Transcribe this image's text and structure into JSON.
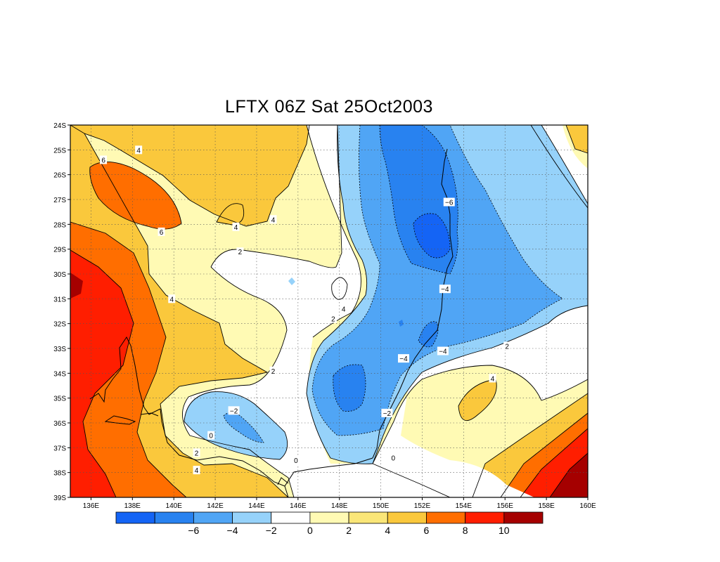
{
  "title": "LFTX 06Z Sat 25Oct2003",
  "map": {
    "lat_labels": [
      "24S",
      "25S",
      "26S",
      "27S",
      "28S",
      "29S",
      "30S",
      "31S",
      "32S",
      "33S",
      "34S",
      "35S",
      "36S",
      "37S",
      "38S",
      "39S"
    ],
    "lon_labels": [
      "136E",
      "138E",
      "140E",
      "142E",
      "144E",
      "146E",
      "148E",
      "150E",
      "152E",
      "154E",
      "156E",
      "158E",
      "160E"
    ],
    "lon_range": [
      135,
      160
    ],
    "lat_range": [
      -39,
      -24
    ],
    "grid": "dotted"
  },
  "contour_labels": [
    {
      "text": "6",
      "lon": 136.6,
      "lat": -25.4
    },
    {
      "text": "4",
      "lon": 138.3,
      "lat": -25.0
    },
    {
      "text": "6",
      "lon": 139.4,
      "lat": -28.3
    },
    {
      "text": "4",
      "lon": 139.9,
      "lat": -31.0
    },
    {
      "text": "4",
      "lon": 143.0,
      "lat": -28.1
    },
    {
      "text": "4",
      "lon": 144.8,
      "lat": -27.8
    },
    {
      "text": "2",
      "lon": 143.2,
      "lat": -29.1
    },
    {
      "text": "4",
      "lon": 148.2,
      "lat": -31.4
    },
    {
      "text": "2",
      "lon": 147.7,
      "lat": -31.8
    },
    {
      "text": "2",
      "lon": 144.8,
      "lat": -33.9
    },
    {
      "text": "-2",
      "lon": 142.9,
      "lat": -35.5
    },
    {
      "text": "0",
      "lon": 141.8,
      "lat": -36.5
    },
    {
      "text": "2",
      "lon": 141.1,
      "lat": -37.2
    },
    {
      "text": "4",
      "lon": 141.1,
      "lat": -37.9
    },
    {
      "text": "0",
      "lon": 145.9,
      "lat": -37.5
    },
    {
      "text": "-6",
      "lon": 153.3,
      "lat": -27.1
    },
    {
      "text": "-4",
      "lon": 153.1,
      "lat": -30.6
    },
    {
      "text": "-4",
      "lon": 151.1,
      "lat": -33.4
    },
    {
      "text": "-4",
      "lon": 153.0,
      "lat": -33.1
    },
    {
      "text": "-2",
      "lon": 150.3,
      "lat": -35.6
    },
    {
      "text": "2",
      "lon": 156.1,
      "lat": -32.9
    },
    {
      "text": "4",
      "lon": 155.4,
      "lat": -34.2
    },
    {
      "text": "0",
      "lon": 150.6,
      "lat": -37.4
    }
  ],
  "colorbar": {
    "colors": [
      "#1464f5",
      "#2882f0",
      "#50a5f5",
      "#96d2fa",
      "#ffffff",
      "#fffab4",
      "#fae678",
      "#fac83c",
      "#ff6e00",
      "#ff1e00",
      "#a50000"
    ],
    "tick_labels": [
      "−6",
      "−4",
      "−2",
      "0",
      "2",
      "4",
      "6",
      "8",
      "10"
    ]
  }
}
